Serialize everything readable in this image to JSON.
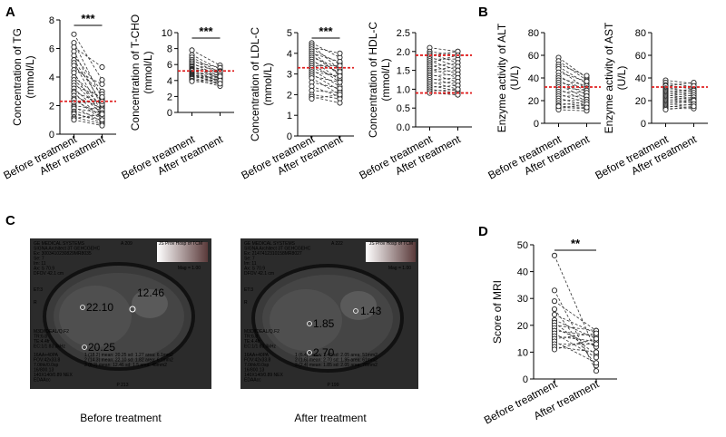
{
  "figure": {
    "panels": {
      "A": "A",
      "B": "B",
      "C": "C",
      "D": "D"
    },
    "mri": {
      "before": {
        "caption": "Before treatment",
        "header_lines": [
          "GE MEDICAL SYSTEMS",
          "SIGNA Architect 3T GEHCGEHC",
          "Ex: 3003410230829MR8035",
          "Se: 7",
          "Im: 11",
          "Ax: S 70.9",
          "DFOV 42.1 cm"
        ],
        "header_right": "JS Prov Hosp of TCM",
        "image_no": "A 209",
        "mag": "Mag = 1.00",
        "side_lines": [
          "ET:3",
          "R"
        ],
        "mid_lines": [
          "M3D/IDEAL/Q.F2",
          "TR:6.8",
          "TE:4.4fr",
          "EC:1/1 83.3kHz"
        ],
        "bottom_lines": [
          "16AA+40PA",
          "FOV:42x33.8",
          "7.0thk/0.0sp",
          "16/800.13",
          "140X140/0.89 NEX",
          "EDAAcc"
        ],
        "roi_lines": [
          "1 (18.2) mean: 20.25 sd: 1.27 area: 6.1mm2",
          "2 (14.3) mean: 22.10 sd: 1.82 area: 6.1mm2",
          "3 (8.2) mean: 12.46 sd: 1.5 area: 48mm2"
        ],
        "footer": "P 213",
        "values": {
          "liver_upper": "22.10",
          "liver_lower": "20.25",
          "spleen": "12.46"
        }
      },
      "after": {
        "caption": "After treatment",
        "header_lines": [
          "GE MEDICAL SYSTEMS",
          "SIGNA Architect 3T GEHCGEHC",
          "Ex: 2147412310158MR8027",
          "Se: 7",
          "Im: 11",
          "Ax: S 70.9",
          "DFOV 42.1 cm"
        ],
        "header_right": "JS Prov Hosp of TCM",
        "image_no": "A 222",
        "mag": "Mag = 1.00",
        "side_lines": [
          "ET:3",
          "R"
        ],
        "mid_lines": [
          "M3D/IDEAL/Q.F2",
          "TR:6.8",
          "TE:4.4fr",
          "EC:1/1 83.3kHz"
        ],
        "bottom_lines": [
          "16AA+40PA",
          "FOV:42x33.8",
          "7.0thk/0.0sp",
          "16/800.13",
          "140X140/0.89 NEX",
          "EDAAcc"
        ],
        "roi_lines": [
          "1 (6.4) mean: 1.43 sd: 2.05 area: 51mm2",
          "2 (1.6) mean: 2.70 sd: 1.95 area: 61mm2",
          "3 (2.4) mean: 1.85 sd: 2.05 area: 78mm2"
        ],
        "footer": "P 199",
        "values": {
          "liver_upper": "1.85",
          "liver_lower": "2.70",
          "spleen": "1.43"
        }
      }
    }
  },
  "chart_data": [
    {
      "id": "TG",
      "panel": "A",
      "type": "paired-scatter",
      "ylabel_lines": [
        "Concentration of TG",
        "(mmol/L)"
      ],
      "categories": [
        "Before treatment",
        "After treatment"
      ],
      "ylim": [
        0,
        8
      ],
      "yticks": [
        0,
        2,
        4,
        6,
        8
      ],
      "reference_lines": [
        2.3
      ],
      "significance": "***",
      "pairs": [
        [
          7.0,
          3.8
        ],
        [
          6.4,
          2.5
        ],
        [
          6.1,
          4.7
        ],
        [
          5.8,
          1.9
        ],
        [
          5.5,
          3.0
        ],
        [
          5.2,
          2.2
        ],
        [
          5.0,
          1.5
        ],
        [
          4.8,
          2.8
        ],
        [
          4.5,
          3.5
        ],
        [
          4.3,
          1.2
        ],
        [
          4.0,
          2.4
        ],
        [
          3.8,
          2.0
        ],
        [
          3.6,
          1.6
        ],
        [
          3.4,
          2.6
        ],
        [
          3.2,
          1.4
        ],
        [
          3.0,
          2.1
        ],
        [
          2.9,
          1.1
        ],
        [
          2.7,
          1.8
        ],
        [
          2.5,
          1.0
        ],
        [
          2.4,
          1.3
        ],
        [
          2.2,
          2.3
        ],
        [
          2.0,
          1.7
        ],
        [
          1.9,
          0.9
        ],
        [
          1.8,
          1.5
        ],
        [
          1.6,
          1.2
        ],
        [
          1.5,
          0.8
        ],
        [
          1.4,
          1.0
        ],
        [
          1.2,
          0.7
        ],
        [
          1.1,
          1.4
        ],
        [
          1.0,
          0.6
        ]
      ]
    },
    {
      "id": "TCHO",
      "panel": "A",
      "type": "paired-scatter",
      "ylabel_lines": [
        "Concentration of T-CHO",
        "(mmol/L)"
      ],
      "categories": [
        "Before treatment",
        "After treatment"
      ],
      "ylim": [
        0,
        10
      ],
      "yticks": [
        0,
        2,
        4,
        6,
        8,
        10
      ],
      "reference_lines": [
        5.2
      ],
      "significance": "***",
      "pairs": [
        [
          7.8,
          5.9
        ],
        [
          7.2,
          5.4
        ],
        [
          6.9,
          5.0
        ],
        [
          6.6,
          4.8
        ],
        [
          6.4,
          5.6
        ],
        [
          6.2,
          4.5
        ],
        [
          6.0,
          5.2
        ],
        [
          5.8,
          4.2
        ],
        [
          5.7,
          4.9
        ],
        [
          5.5,
          4.6
        ],
        [
          5.4,
          3.8
        ],
        [
          5.3,
          5.1
        ],
        [
          5.2,
          4.4
        ],
        [
          5.0,
          4.0
        ],
        [
          4.9,
          4.7
        ],
        [
          4.8,
          3.5
        ],
        [
          4.7,
          4.3
        ],
        [
          4.6,
          4.1
        ],
        [
          4.5,
          3.9
        ],
        [
          4.4,
          4.5
        ],
        [
          4.3,
          3.7
        ],
        [
          4.2,
          3.3
        ],
        [
          4.0,
          4.0
        ],
        [
          3.9,
          3.6
        ]
      ]
    },
    {
      "id": "LDLC",
      "panel": "A",
      "type": "paired-scatter",
      "ylabel_lines": [
        "Concentration of LDL-C",
        "(mmol/L)"
      ],
      "categories": [
        "Before treatment",
        "After treatment"
      ],
      "ylim": [
        0,
        5
      ],
      "yticks": [
        0,
        1,
        2,
        3,
        4,
        5
      ],
      "reference_lines": [
        3.3
      ],
      "significance": "***",
      "pairs": [
        [
          4.5,
          3.8
        ],
        [
          4.4,
          3.2
        ],
        [
          4.3,
          4.0
        ],
        [
          4.2,
          3.5
        ],
        [
          4.1,
          2.9
        ],
        [
          4.0,
          3.6
        ],
        [
          3.9,
          3.0
        ],
        [
          3.8,
          3.3
        ],
        [
          3.7,
          2.7
        ],
        [
          3.6,
          3.1
        ],
        [
          3.5,
          2.6
        ],
        [
          3.4,
          3.4
        ],
        [
          3.3,
          2.8
        ],
        [
          3.2,
          2.4
        ],
        [
          3.1,
          2.9
        ],
        [
          3.0,
          2.2
        ],
        [
          2.9,
          2.6
        ],
        [
          2.8,
          2.0
        ],
        [
          2.6,
          2.3
        ],
        [
          2.4,
          1.9
        ],
        [
          2.2,
          2.1
        ],
        [
          2.0,
          1.8
        ],
        [
          1.9,
          1.6
        ],
        [
          1.8,
          2.0
        ]
      ]
    },
    {
      "id": "HDLC",
      "panel": "A",
      "type": "paired-scatter",
      "ylabel_lines": [
        "Concentration of HDL-C",
        "(mmol/L)"
      ],
      "categories": [
        "Before treatment",
        "After treatment"
      ],
      "ylim": [
        0,
        2.5
      ],
      "yticks": [
        0.0,
        0.5,
        1.0,
        1.5,
        2.0,
        2.5
      ],
      "tick_decimals": 1,
      "reference_lines": [
        0.9,
        1.9
      ],
      "significance": "",
      "pairs": [
        [
          2.1,
          2.0
        ],
        [
          2.0,
          1.9
        ],
        [
          1.95,
          1.7
        ],
        [
          1.9,
          2.0
        ],
        [
          1.85,
          1.6
        ],
        [
          1.8,
          1.8
        ],
        [
          1.75,
          1.5
        ],
        [
          1.7,
          1.9
        ],
        [
          1.65,
          1.4
        ],
        [
          1.6,
          1.7
        ],
        [
          1.55,
          1.3
        ],
        [
          1.5,
          1.6
        ],
        [
          1.45,
          1.5
        ],
        [
          1.4,
          1.2
        ],
        [
          1.35,
          1.4
        ],
        [
          1.3,
          1.1
        ],
        [
          1.25,
          1.3
        ],
        [
          1.2,
          1.0
        ],
        [
          1.15,
          1.2
        ],
        [
          1.1,
          0.95
        ],
        [
          1.05,
          1.1
        ],
        [
          1.0,
          0.9
        ],
        [
          0.95,
          1.0
        ],
        [
          0.9,
          0.85
        ]
      ]
    },
    {
      "id": "ALT",
      "panel": "B",
      "type": "paired-scatter",
      "ylabel_lines": [
        "Enzyme activity of ALT",
        "(U/L)"
      ],
      "categories": [
        "Before treatment",
        "After treatment"
      ],
      "ylim": [
        0,
        80
      ],
      "yticks": [
        0,
        20,
        40,
        60,
        80
      ],
      "reference_lines": [
        32
      ],
      "significance": "",
      "pairs": [
        [
          58,
          40
        ],
        [
          55,
          38
        ],
        [
          52,
          42
        ],
        [
          50,
          35
        ],
        [
          48,
          30
        ],
        [
          45,
          37
        ],
        [
          42,
          28
        ],
        [
          40,
          33
        ],
        [
          38,
          25
        ],
        [
          36,
          31
        ],
        [
          34,
          22
        ],
        [
          32,
          29
        ],
        [
          30,
          20
        ],
        [
          28,
          27
        ],
        [
          26,
          18
        ],
        [
          24,
          24
        ],
        [
          22,
          16
        ],
        [
          20,
          21
        ],
        [
          18,
          15
        ],
        [
          16,
          19
        ],
        [
          14,
          13
        ],
        [
          13,
          17
        ],
        [
          12,
          11
        ],
        [
          15,
          14
        ]
      ]
    },
    {
      "id": "AST",
      "panel": "B",
      "type": "paired-scatter",
      "ylabel_lines": [
        "Enzyme activity of AST",
        "(U/L)"
      ],
      "categories": [
        "Before treatment",
        "After treatment"
      ],
      "ylim": [
        0,
        80
      ],
      "yticks": [
        0,
        20,
        40,
        60,
        80
      ],
      "reference_lines": [
        32
      ],
      "significance": "",
      "pairs": [
        [
          38,
          35
        ],
        [
          36,
          32
        ],
        [
          34,
          30
        ],
        [
          33,
          36
        ],
        [
          31,
          28
        ],
        [
          30,
          33
        ],
        [
          29,
          26
        ],
        [
          28,
          30
        ],
        [
          27,
          24
        ],
        [
          26,
          29
        ],
        [
          25,
          22
        ],
        [
          24,
          27
        ],
        [
          23,
          21
        ],
        [
          22,
          25
        ],
        [
          21,
          19
        ],
        [
          20,
          23
        ],
        [
          19,
          18
        ],
        [
          18,
          21
        ],
        [
          17,
          16
        ],
        [
          16,
          20
        ],
        [
          15,
          14
        ],
        [
          14,
          17
        ],
        [
          13,
          13
        ],
        [
          12,
          15
        ]
      ]
    },
    {
      "id": "MRI",
      "panel": "D",
      "type": "paired-scatter",
      "ylabel_lines": [
        "Score of MRI"
      ],
      "categories": [
        "Before treatment",
        "After treatment"
      ],
      "ylim": [
        0,
        50
      ],
      "yticks": [
        0,
        10,
        20,
        30,
        40,
        50
      ],
      "reference_lines": [],
      "significance": "**",
      "pairs": [
        [
          46,
          10
        ],
        [
          33,
          3
        ],
        [
          29,
          18
        ],
        [
          26,
          5
        ],
        [
          24,
          17
        ],
        [
          22,
          15
        ],
        [
          21,
          9
        ],
        [
          20,
          18
        ],
        [
          19,
          12
        ],
        [
          18,
          16
        ],
        [
          17,
          8
        ],
        [
          16,
          14
        ],
        [
          15,
          17
        ],
        [
          14,
          6
        ],
        [
          13,
          13
        ],
        [
          12,
          10
        ],
        [
          11,
          15
        ]
      ]
    }
  ]
}
